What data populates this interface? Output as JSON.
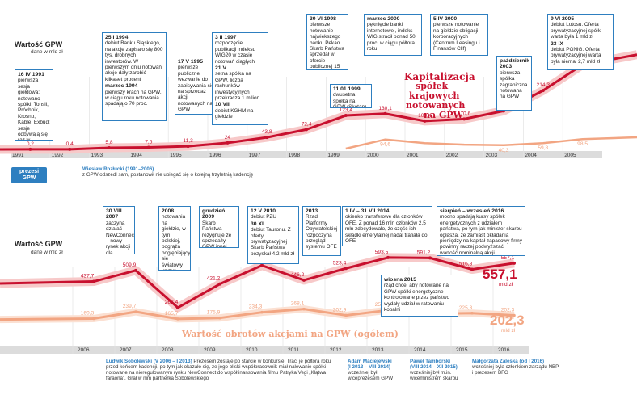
{
  "chart_data": [
    {
      "type": "line",
      "ylabel": "Wartość GPW",
      "yunit": "dane w mld zł",
      "headline": "Kapitalizacja spółek krajowych notowanych na GPW",
      "x": [
        "1991",
        "1992",
        "1993",
        "1994",
        "1995",
        "1996",
        "1997",
        "1998",
        "1999",
        "2000",
        "2001",
        "2002",
        "2003",
        "2004",
        "2005"
      ],
      "series": [
        {
          "values": [
            0.2,
            0.4,
            5.8,
            7.5,
            11.3,
            24.0,
            43.8,
            72.4,
            123.4,
            130.1,
            103.4,
            110.6,
            140.0,
            214.3,
            308.4
          ]
        },
        {
          "values": [
            null,
            null,
            null,
            null,
            null,
            null,
            null,
            null,
            null,
            94.6,
            null,
            null,
            40.3,
            59.8,
            98.5
          ]
        }
      ]
    },
    {
      "type": "line",
      "ylabel": "Wartość GPW",
      "yunit": "dane w mld zł",
      "headline": "Wartość obrotów akcjami na GPW (ogółem)",
      "x": [
        "2006",
        "2007",
        "2008",
        "2009",
        "2010",
        "2011",
        "2012",
        "2013",
        "2014",
        "2015",
        "2016"
      ],
      "series": [
        {
          "values": [
            437.7,
            509.9,
            267.4,
            421.2,
            542.6,
            446.2,
            523.4,
            593.5,
            591.2,
            516.8,
            557.1
          ]
        },
        {
          "values": [
            169.3,
            239.7,
            165.7,
            175.9,
            234.3,
            268.1,
            202.9,
            256.1,
            219.3,
            225.3,
            202.3
          ]
        }
      ],
      "end_labels": {
        "top": "557,1",
        "bottom": "202,3",
        "unit": "mld zł"
      }
    }
  ],
  "text": {
    "y1": "Wartość GPW",
    "u1": "dane w mld zł",
    "y2": "Wartość GPW",
    "u2": "dane w mld zł",
    "hl1a": "Kapitalizacja",
    "hl1b": "spółek",
    "hl1c": "krajowych",
    "hl1d": "notowanych",
    "hl1e": "na GPW",
    "hl2": "Wartość obrotów akcjami na GPW (ogółem)",
    "big1": "557,1",
    "big2": "202,3",
    "mld1": "mld zł",
    "mld2": "mld zł",
    "pill1": "prezesi GPW",
    "p1n": "Wiesław Rozłucki (1991–2006)",
    "p1t": "z GPW odszedł sam, postanowił nie ubiegać się o kolejną trzyletnią kadencję",
    "p2n": "Ludwik Sobolewski",
    "p2d": "(V 2006 – I 2013)",
    "p2t": "Prezesem zostaje po starcie w konkursie. Traci je półtora roku przed końcem kadencji, po tym jak okazało się, że jego bliski współpracownik miał nalewanie spółki notowane na nieregulowanym rynku NewConnect do współfinansowania filmu Patryka Vegi „Klątwa faraona”. Grał w nim partnerka Sobolewskiego",
    "p3n": "Adam Maciejewski",
    "p3d": "(I 2013 – VIII 2014)",
    "p3t": "wcześniej był wiceprezesem GPW",
    "p4n": "Paweł Tamborski",
    "p4d": "(VIII 2014 – XII 2015)",
    "p4t": "wcześniej był m.in. wiceministrem skarbu",
    "p5n": "Małgorzata Zaleska",
    "p5d": "(od I 2016)",
    "p5t": "wcześniej była członkiem zarządu NBP i prezesem BFG"
  },
  "boxes": [
    {
      "h": "16 IV 1991",
      "t": "pierwsza sesja giełdowa; notowano spółki: Tonsil, Próchnik, Krosno, Kable, Exbud; sesje odbywają się raz w tygodniu"
    },
    {
      "h": "25 I 1994",
      "t": "debiut Banku Śląskiego, na akcje zapisało się 800 tys. drobnych inwestorów. W pierwszym dniu notowań akcje dały zarobić kilkaset procent",
      "h2": "marzec 1994",
      "t2": "pierwszy krach na GPW, w ciągu roku notowania spadają o 70 proc."
    },
    {
      "h": "17 V 1995",
      "t": "pierwsze publiczne wezwanie do zapisywania się na sprzedaż akcji notowanych na GPW"
    },
    {
      "h": "3 II 1997",
      "t": "rozpoczęcie publikacji indeksu WIG20 w czasie notowań ciągłych",
      "h2": "21 V",
      "t2": "setna spółka na GPW, liczba rachunków inwestycyjnych przekracza 1 milion",
      "h3": "10 VII",
      "t3": "debiut KGHM na giełdzie"
    },
    {
      "h": "30 VI 1998",
      "t": "pierwsze notowanie największego banku Pekao. Skarb Państwa sprzedał w ofercie publicznej 15 proc. akcji banku"
    },
    {
      "h": "11 01 1999",
      "t": "dwusetna spółka na GPW (Skotan)"
    },
    {
      "h": "marzec 2000",
      "t": "pęknięcie banki internetowej, indeks WIG stracił ponad 50 proc. w ciągu półtora roku"
    },
    {
      "h": "5 IV 2000",
      "t": "pierwsze notowanie na giełdzie obligacji korporacyjnych (Centrum Leasingu i Finansów Clif)"
    },
    {
      "h": "październik 2003",
      "t": "pierwsza spółka zagraniczna notowana na GPW"
    },
    {
      "h": "9 VI 2005",
      "t": "debiut Lotosu. Oferta prywatyzacyjnej spółki warta była 1 mld zł",
      "h2": "23 IX",
      "t2": "debiut PGNiG. Oferta prywatyzacyjnej warta była niemal 2,7 mld zł"
    },
    {
      "h": "30 VIII 2007",
      "t": "zaczyna działać NewConnect – nowy rynek akcji dla młodych spółek"
    },
    {
      "h": "2008",
      "t": "notowania na giełdzie, w tym polskiej, pogrąża pogłębiający się światowy kryzys finansowy"
    },
    {
      "h": "grudzień 2009",
      "t": "Skarb Państwa rezygnuje ze sprzedaży GPW innej giełdzie"
    },
    {
      "h": "12 V 2010",
      "t": "debiut PZU",
      "h2": "30 XI",
      "t2": "debiut Tauronu. Z oferty prywatyzacyjnej Skarb Państwa pozyskał 4,2 mld zł"
    },
    {
      "h": "2013",
      "t": "Rząd Platformy Obywatelskiej rozpoczyna przegląd systemu OFE"
    },
    {
      "h": "1 IV – 31 VII 2014",
      "t": "okienko transferowe dla członków OFE. Z ponad 16 mln członków 2,5 mln zdecydowało, że część ich składki emerytalnej nadal trafiała do OFE"
    },
    {
      "h": "wiosna 2015",
      "t": "rząd chce, aby notowane na GPW spółki energetyczne kontrolowane przez państwo wydały udział w ratowaniu kopalni"
    },
    {
      "h": "sierpień – wrzesień 2016",
      "t": "mocno spadają kursy spółek energetycznych z udziałem państwa, po tym jak minister skarbu ogłasza, że zamiast okładania pieniędzy na kapitał zapasowy firmy powinny raczej podwyższać wartość nominalną akcji"
    }
  ]
}
